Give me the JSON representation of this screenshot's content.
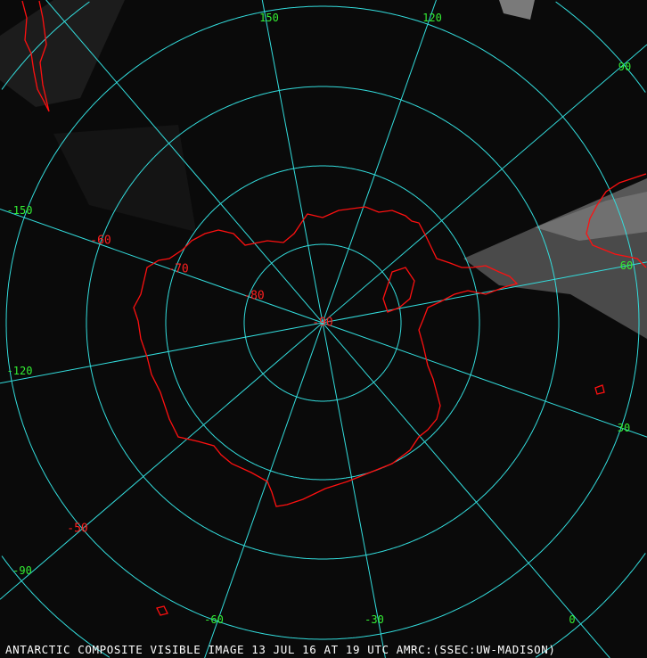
{
  "caption": "ANTARCTIC COMPOSITE VISIBLE IMAGE 13 JUL 16 AT 19 UTC AMRC:(SSEC:UW-MADISON)",
  "colors": {
    "grid": "#33dddd",
    "coastline": "#ff1010",
    "lon_labels": "#33ee33",
    "lat_labels": "#ff2020",
    "caption": "#ffffff"
  },
  "longitude_labels": [
    "150",
    "120",
    "90",
    "60",
    "30",
    "0",
    "-30",
    "-60",
    "-90",
    "-120",
    "-150"
  ],
  "latitude_labels": [
    "-50",
    "-60",
    "-70",
    "-80",
    "-90"
  ],
  "meridians_deg": [
    0,
    30,
    60,
    90,
    120,
    150
  ],
  "projection": "polar stereographic, south pole centered"
}
